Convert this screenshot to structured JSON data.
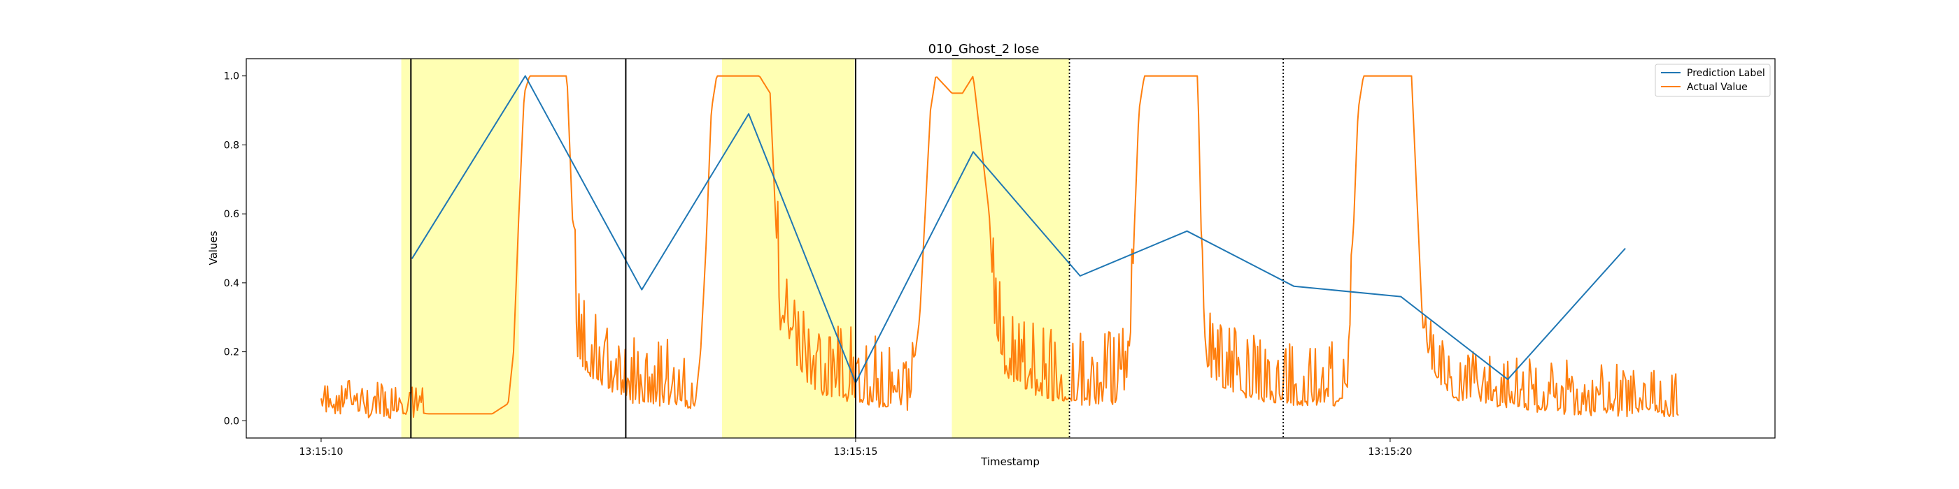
{
  "chart_data": {
    "type": "line",
    "title": "010_Ghost_2 lose",
    "xlabel": "Timestamp",
    "ylabel": "Values",
    "x_unit": "seconds after 13:15:10",
    "xlim": [
      -0.7,
      13.6
    ],
    "ylim": [
      -0.05,
      1.05
    ],
    "x_ticks": [
      {
        "value": 0,
        "label": "13:15:10"
      },
      {
        "value": 5,
        "label": "13:15:15"
      },
      {
        "value": 10,
        "label": "13:15:20"
      }
    ],
    "y_ticks": [
      {
        "value": 0.0,
        "label": "0.0"
      },
      {
        "value": 0.2,
        "label": "0.2"
      },
      {
        "value": 0.4,
        "label": "0.4"
      },
      {
        "value": 0.6,
        "label": "0.6"
      },
      {
        "value": 0.8,
        "label": "0.8"
      },
      {
        "value": 1.0,
        "label": "1.0"
      }
    ],
    "grid": false,
    "legend_position": "top-right",
    "series": [
      {
        "name": "Prediction Label",
        "color": "#1f77b4",
        "points": [
          [
            0.85,
            0.47
          ],
          [
            1.91,
            1.0
          ],
          [
            3.0,
            0.38
          ],
          [
            4.0,
            0.89
          ],
          [
            5.0,
            0.11
          ],
          [
            6.1,
            0.78
          ],
          [
            7.1,
            0.42
          ],
          [
            8.1,
            0.55
          ],
          [
            9.1,
            0.39
          ],
          [
            10.1,
            0.36
          ],
          [
            11.1,
            0.12
          ],
          [
            12.2,
            0.5
          ]
        ]
      },
      {
        "name": "Actual Value",
        "color": "#ff7f0e",
        "points": [
          [
            0,
            0.02
          ],
          [
            0.1,
            0.05
          ],
          [
            0.2,
            0.02
          ],
          [
            0.3,
            0.06
          ],
          [
            0.4,
            0.02
          ],
          [
            0.5,
            0.04
          ],
          [
            0.6,
            0.02
          ],
          [
            0.7,
            0.03
          ],
          [
            0.8,
            0.02
          ],
          [
            0.9,
            0.025
          ],
          [
            1.0,
            0.02
          ],
          [
            1.2,
            0.02
          ],
          [
            1.4,
            0.02
          ],
          [
            1.6,
            0.02
          ],
          [
            1.75,
            0.05
          ],
          [
            1.8,
            0.2
          ],
          [
            1.85,
            0.6
          ],
          [
            1.9,
            0.95
          ],
          [
            1.95,
            1.0
          ],
          [
            2.0,
            1.0
          ],
          [
            2.2,
            1.0
          ],
          [
            2.3,
            1.0
          ],
          [
            2.4,
            0.2
          ],
          [
            2.5,
            0.15
          ],
          [
            2.6,
            0.12
          ],
          [
            2.7,
            0.1
          ],
          [
            2.8,
            0.08
          ],
          [
            2.9,
            0.07
          ],
          [
            3.0,
            0.07
          ],
          [
            3.2,
            0.06
          ],
          [
            3.4,
            0.06
          ],
          [
            3.5,
            0.05
          ],
          [
            3.55,
            0.2
          ],
          [
            3.6,
            0.5
          ],
          [
            3.65,
            0.9
          ],
          [
            3.7,
            1.0
          ],
          [
            3.8,
            1.0
          ],
          [
            4.0,
            1.0
          ],
          [
            4.1,
            1.0
          ],
          [
            4.2,
            0.95
          ],
          [
            4.3,
            0.25
          ],
          [
            4.4,
            0.2
          ],
          [
            4.6,
            0.1
          ],
          [
            4.8,
            0.08
          ],
          [
            5.0,
            0.07
          ],
          [
            5.2,
            0.06
          ],
          [
            5.4,
            0.05
          ],
          [
            5.5,
            0.05
          ],
          [
            5.6,
            0.3
          ],
          [
            5.65,
            0.6
          ],
          [
            5.7,
            0.9
          ],
          [
            5.75,
            1.0
          ],
          [
            5.9,
            0.95
          ],
          [
            6.0,
            0.95
          ],
          [
            6.1,
            1.0
          ],
          [
            6.25,
            0.6
          ],
          [
            6.3,
            0.3
          ],
          [
            6.4,
            0.15
          ],
          [
            6.6,
            0.1
          ],
          [
            6.8,
            0.08
          ],
          [
            7.0,
            0.07
          ],
          [
            7.2,
            0.06
          ],
          [
            7.4,
            0.06
          ],
          [
            7.55,
            0.1
          ],
          [
            7.6,
            0.5
          ],
          [
            7.65,
            0.9
          ],
          [
            7.7,
            1.0
          ],
          [
            7.8,
            1.0
          ],
          [
            8.0,
            1.0
          ],
          [
            8.2,
            1.0
          ],
          [
            8.25,
            0.3
          ],
          [
            8.3,
            0.15
          ],
          [
            8.5,
            0.1
          ],
          [
            8.7,
            0.08
          ],
          [
            8.9,
            0.07
          ],
          [
            9.1,
            0.06
          ],
          [
            9.3,
            0.06
          ],
          [
            9.5,
            0.06
          ],
          [
            9.6,
            0.1
          ],
          [
            9.65,
            0.5
          ],
          [
            9.7,
            0.9
          ],
          [
            9.75,
            1.0
          ],
          [
            9.9,
            1.0
          ],
          [
            10.1,
            1.0
          ],
          [
            10.2,
            1.0
          ],
          [
            10.3,
            0.3
          ],
          [
            10.4,
            0.15
          ],
          [
            10.6,
            0.08
          ],
          [
            10.8,
            0.07
          ],
          [
            11.0,
            0.06
          ],
          [
            11.2,
            0.05
          ],
          [
            11.4,
            0.04
          ],
          [
            11.6,
            0.04
          ],
          [
            11.8,
            0.03
          ],
          [
            12.0,
            0.04
          ],
          [
            12.2,
            0.03
          ],
          [
            12.4,
            0.04
          ],
          [
            12.6,
            0.03
          ],
          [
            12.7,
            0.03
          ]
        ],
        "noise_bands": [
          [
            0.0,
            0.95,
            0.08
          ],
          [
            2.35,
            3.5,
            0.18
          ],
          [
            4.25,
            5.55,
            0.2
          ],
          [
            6.2,
            7.6,
            0.2
          ],
          [
            8.2,
            9.65,
            0.18
          ],
          [
            10.3,
            12.75,
            0.14
          ]
        ]
      }
    ],
    "highlight_regions": [
      {
        "x_start": 0.75,
        "x_end": 1.85,
        "color": "#ffff99"
      },
      {
        "x_start": 3.75,
        "x_end": 4.99,
        "color": "#ffff99"
      },
      {
        "x_start": 5.9,
        "x_end": 7.0,
        "color": "#ffff99"
      }
    ],
    "vertical_lines": [
      {
        "x": 0.84,
        "style": "solid"
      },
      {
        "x": 2.85,
        "style": "solid"
      },
      {
        "x": 5.0,
        "style": "solid"
      },
      {
        "x": 7.0,
        "style": "dotted"
      },
      {
        "x": 9.0,
        "style": "dotted"
      }
    ]
  }
}
